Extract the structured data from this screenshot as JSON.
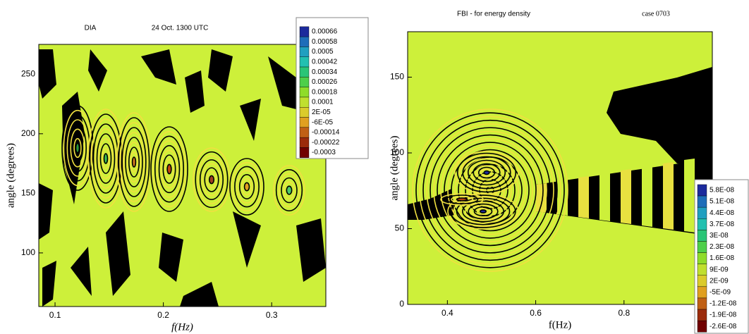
{
  "chart_data": [
    {
      "type": "contour",
      "title": "DIA",
      "subtitle": "24 Oct. 1300 UTC",
      "x_label": "f(Hz)",
      "y_label": "angle (degrees)",
      "xlim": [
        0.085,
        0.35
      ],
      "xticks": [
        0.1,
        0.2,
        0.3
      ],
      "ylim": [
        55,
        275
      ],
      "yticks": [
        100,
        150,
        200,
        250
      ],
      "levels": [
        0.00066,
        0.00058,
        0.0005,
        0.00042,
        0.00034,
        0.00026,
        0.00018,
        0.0001,
        {
          "value": 2e-05,
          "label": "2E-05"
        },
        {
          "value": -6e-05,
          "label": "-6E-05"
        },
        -0.00014,
        -0.00022,
        -0.0003
      ],
      "colormap": [
        "#1c2a9c",
        "#1f8fc8",
        "#22c0b0",
        "#2ec85a",
        "#8fdc2a",
        "#d8e030",
        "#e0a020",
        "#b04010",
        "#700000"
      ]
    },
    {
      "type": "contour",
      "title": "FBI - for energy density",
      "subtitle": "case 0703",
      "x_label": "f(Hz)",
      "y_label": "angle (degrees)",
      "xlim": [
        0.31,
        1.0
      ],
      "xticks": [
        0.4,
        0.6,
        0.8
      ],
      "ylim": [
        0,
        180
      ],
      "yticks": [
        0,
        50,
        100,
        150
      ],
      "levels": [
        {
          "value": 5.8e-08,
          "label": "5.8E-08"
        },
        {
          "value": 5.1e-08,
          "label": "5.1E-08"
        },
        {
          "value": 4.4e-08,
          "label": "4.4E-08"
        },
        {
          "value": 3.7e-08,
          "label": "3.7E-08"
        },
        {
          "value": 3e-08,
          "label": "3E-08"
        },
        {
          "value": 2.3e-08,
          "label": "2.3E-08"
        },
        {
          "value": 1.6e-08,
          "label": "1.6E-08"
        },
        {
          "value": 9e-09,
          "label": "9E-09"
        },
        {
          "value": 2e-09,
          "label": "2E-09"
        },
        {
          "value": -5e-09,
          "label": "-5E-09"
        },
        {
          "value": -1.2e-08,
          "label": "-1.2E-08"
        },
        {
          "value": -1.9e-08,
          "label": "-1.9E-08"
        },
        {
          "value": -2.6e-08,
          "label": "-2.6E-08"
        }
      ],
      "colormap": [
        "#1c2a9c",
        "#1f8fc8",
        "#22c0b0",
        "#2ec85a",
        "#8fdc2a",
        "#d8e030",
        "#e0a020",
        "#b04010",
        "#700000"
      ]
    }
  ]
}
